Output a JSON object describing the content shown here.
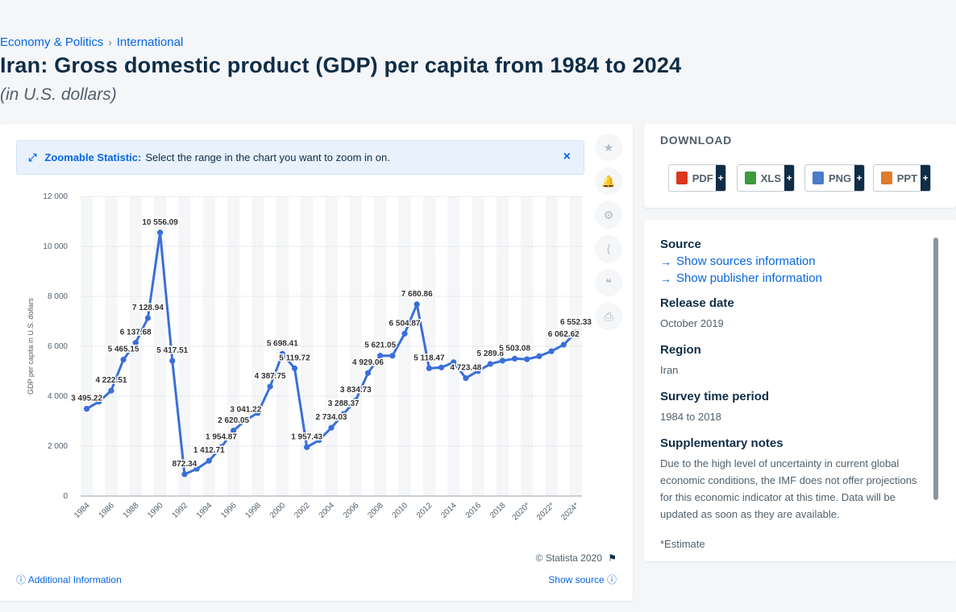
{
  "breadcrumb": {
    "items": [
      "Economy & Politics",
      "International"
    ],
    "separator": "›"
  },
  "page": {
    "title": "Iran: Gross domestic product (GDP) per capita from 1984 to 2024",
    "subtitle": "(in U.S. dollars)"
  },
  "zoom_banner": {
    "title": "Zoomable Statistic:",
    "description": "Select the range in the chart you want to zoom in on.",
    "close": "×"
  },
  "toolbar": {
    "icons": [
      "star-icon",
      "bell-icon",
      "gear-icon",
      "share-icon",
      "quote-icon",
      "print-icon"
    ],
    "glyphs": [
      "★",
      "🔔",
      "⚙",
      "⟨",
      "❝",
      "⎙"
    ]
  },
  "chart_footer": {
    "copyright": "© Statista 2020",
    "additional_info": "Additional Information",
    "show_source": "Show source"
  },
  "download": {
    "heading": "DOWNLOAD",
    "buttons": [
      {
        "label": "PDF",
        "color": "#d9381e"
      },
      {
        "label": "XLS",
        "color": "#3d9a3d"
      },
      {
        "label": "PNG",
        "color": "#4a7cc9"
      },
      {
        "label": "PPT",
        "color": "#e07b2a"
      }
    ],
    "plus": "+"
  },
  "info": {
    "source_heading": "Source",
    "show_sources": "Show sources information",
    "show_publisher": "Show publisher information",
    "release_heading": "Release date",
    "release_value": "October 2019",
    "region_heading": "Region",
    "region_value": "Iran",
    "survey_heading": "Survey time period",
    "survey_value": "1984 to 2018",
    "notes_heading": "Supplementary notes",
    "notes_value": "Due to the high level of uncertainty in current global economic conditions, the IMF does not offer projections for this economic indicator at this time. Data will be updated as soon as they are available.",
    "estimate_note": "*Estimate"
  },
  "chart_data": {
    "type": "line",
    "title": "Iran: Gross domestic product (GDP) per capita from 1984 to 2024",
    "ylabel": "GDP per capita in U.S. dollars",
    "xlabel": "",
    "ylim": [
      0,
      12000
    ],
    "yticks": [
      0,
      2000,
      4000,
      6000,
      8000,
      10000,
      12000
    ],
    "ytick_labels": [
      "0",
      "2 000",
      "4 000",
      "6 000",
      "8 000",
      "10 000",
      "12 000"
    ],
    "x": [
      "1984",
      "1985",
      "1986",
      "1987",
      "1988",
      "1989",
      "1990",
      "1991",
      "1992",
      "1993",
      "1994",
      "1995",
      "1996",
      "1997",
      "1998",
      "1999",
      "2000",
      "2001",
      "2002",
      "2003",
      "2004",
      "2005",
      "2006",
      "2007",
      "2008",
      "2009",
      "2010",
      "2011",
      "2012",
      "2013",
      "2014",
      "2015",
      "2016",
      "2017",
      "2018",
      "2019",
      "2020*",
      "2021*",
      "2022*",
      "2023*",
      "2024*"
    ],
    "xtick_labels": [
      "1984",
      "1986",
      "1988",
      "1990",
      "1992",
      "1994",
      "1996",
      "1998",
      "2000",
      "2002",
      "2004",
      "2006",
      "2008",
      "2010",
      "2012",
      "2014",
      "2016",
      "2018",
      "2020*",
      "2022*",
      "2024*"
    ],
    "values": [
      3495.22,
      3780,
      4222.51,
      5465.15,
      6137.68,
      7128.94,
      10556.09,
      5417.51,
      872.34,
      1090,
      1412.71,
      1954.87,
      2620.05,
      3041.22,
      3330,
      4387.75,
      5698.41,
      5119.72,
      1957.43,
      2240,
      2734.03,
      3288.37,
      3834.73,
      4929.06,
      5621.05,
      5620,
      6504.87,
      7680.86,
      5118.47,
      5150,
      5360,
      4723.48,
      5010,
      5289.8,
      5420,
      5503.08,
      5480,
      5600,
      5800,
      6062.62,
      6552.33
    ],
    "data_labels": [
      {
        "index": 0,
        "text": "3 495.22"
      },
      {
        "index": 2,
        "text": "4 222.51"
      },
      {
        "index": 3,
        "text": "5 465.15"
      },
      {
        "index": 4,
        "text": "6 137.68"
      },
      {
        "index": 5,
        "text": "7 128.94"
      },
      {
        "index": 6,
        "text": "10 556.09"
      },
      {
        "index": 7,
        "text": "5 417.51"
      },
      {
        "index": 8,
        "text": "872.34"
      },
      {
        "index": 10,
        "text": "1 412.71"
      },
      {
        "index": 11,
        "text": "1 954.87"
      },
      {
        "index": 12,
        "text": "2 620.05"
      },
      {
        "index": 13,
        "text": "3 041.22"
      },
      {
        "index": 15,
        "text": "4 387.75"
      },
      {
        "index": 16,
        "text": "5 698.41"
      },
      {
        "index": 17,
        "text": "5 119.72"
      },
      {
        "index": 18,
        "text": "1 957.43"
      },
      {
        "index": 20,
        "text": "2 734.03"
      },
      {
        "index": 21,
        "text": "3 288.37"
      },
      {
        "index": 22,
        "text": "3 834.73"
      },
      {
        "index": 23,
        "text": "4 929.06"
      },
      {
        "index": 24,
        "text": "5 621.05"
      },
      {
        "index": 26,
        "text": "6 504.87"
      },
      {
        "index": 27,
        "text": "7 680.86"
      },
      {
        "index": 28,
        "text": "5 118.47"
      },
      {
        "index": 31,
        "text": "4 723.48"
      },
      {
        "index": 33,
        "text": "5 289.8"
      },
      {
        "index": 35,
        "text": "5 503.08"
      },
      {
        "index": 39,
        "text": "6 062.62"
      },
      {
        "index": 40,
        "text": "6 552.33"
      }
    ],
    "line_color": "#3a6fd8",
    "grid": true,
    "legend": "none"
  }
}
